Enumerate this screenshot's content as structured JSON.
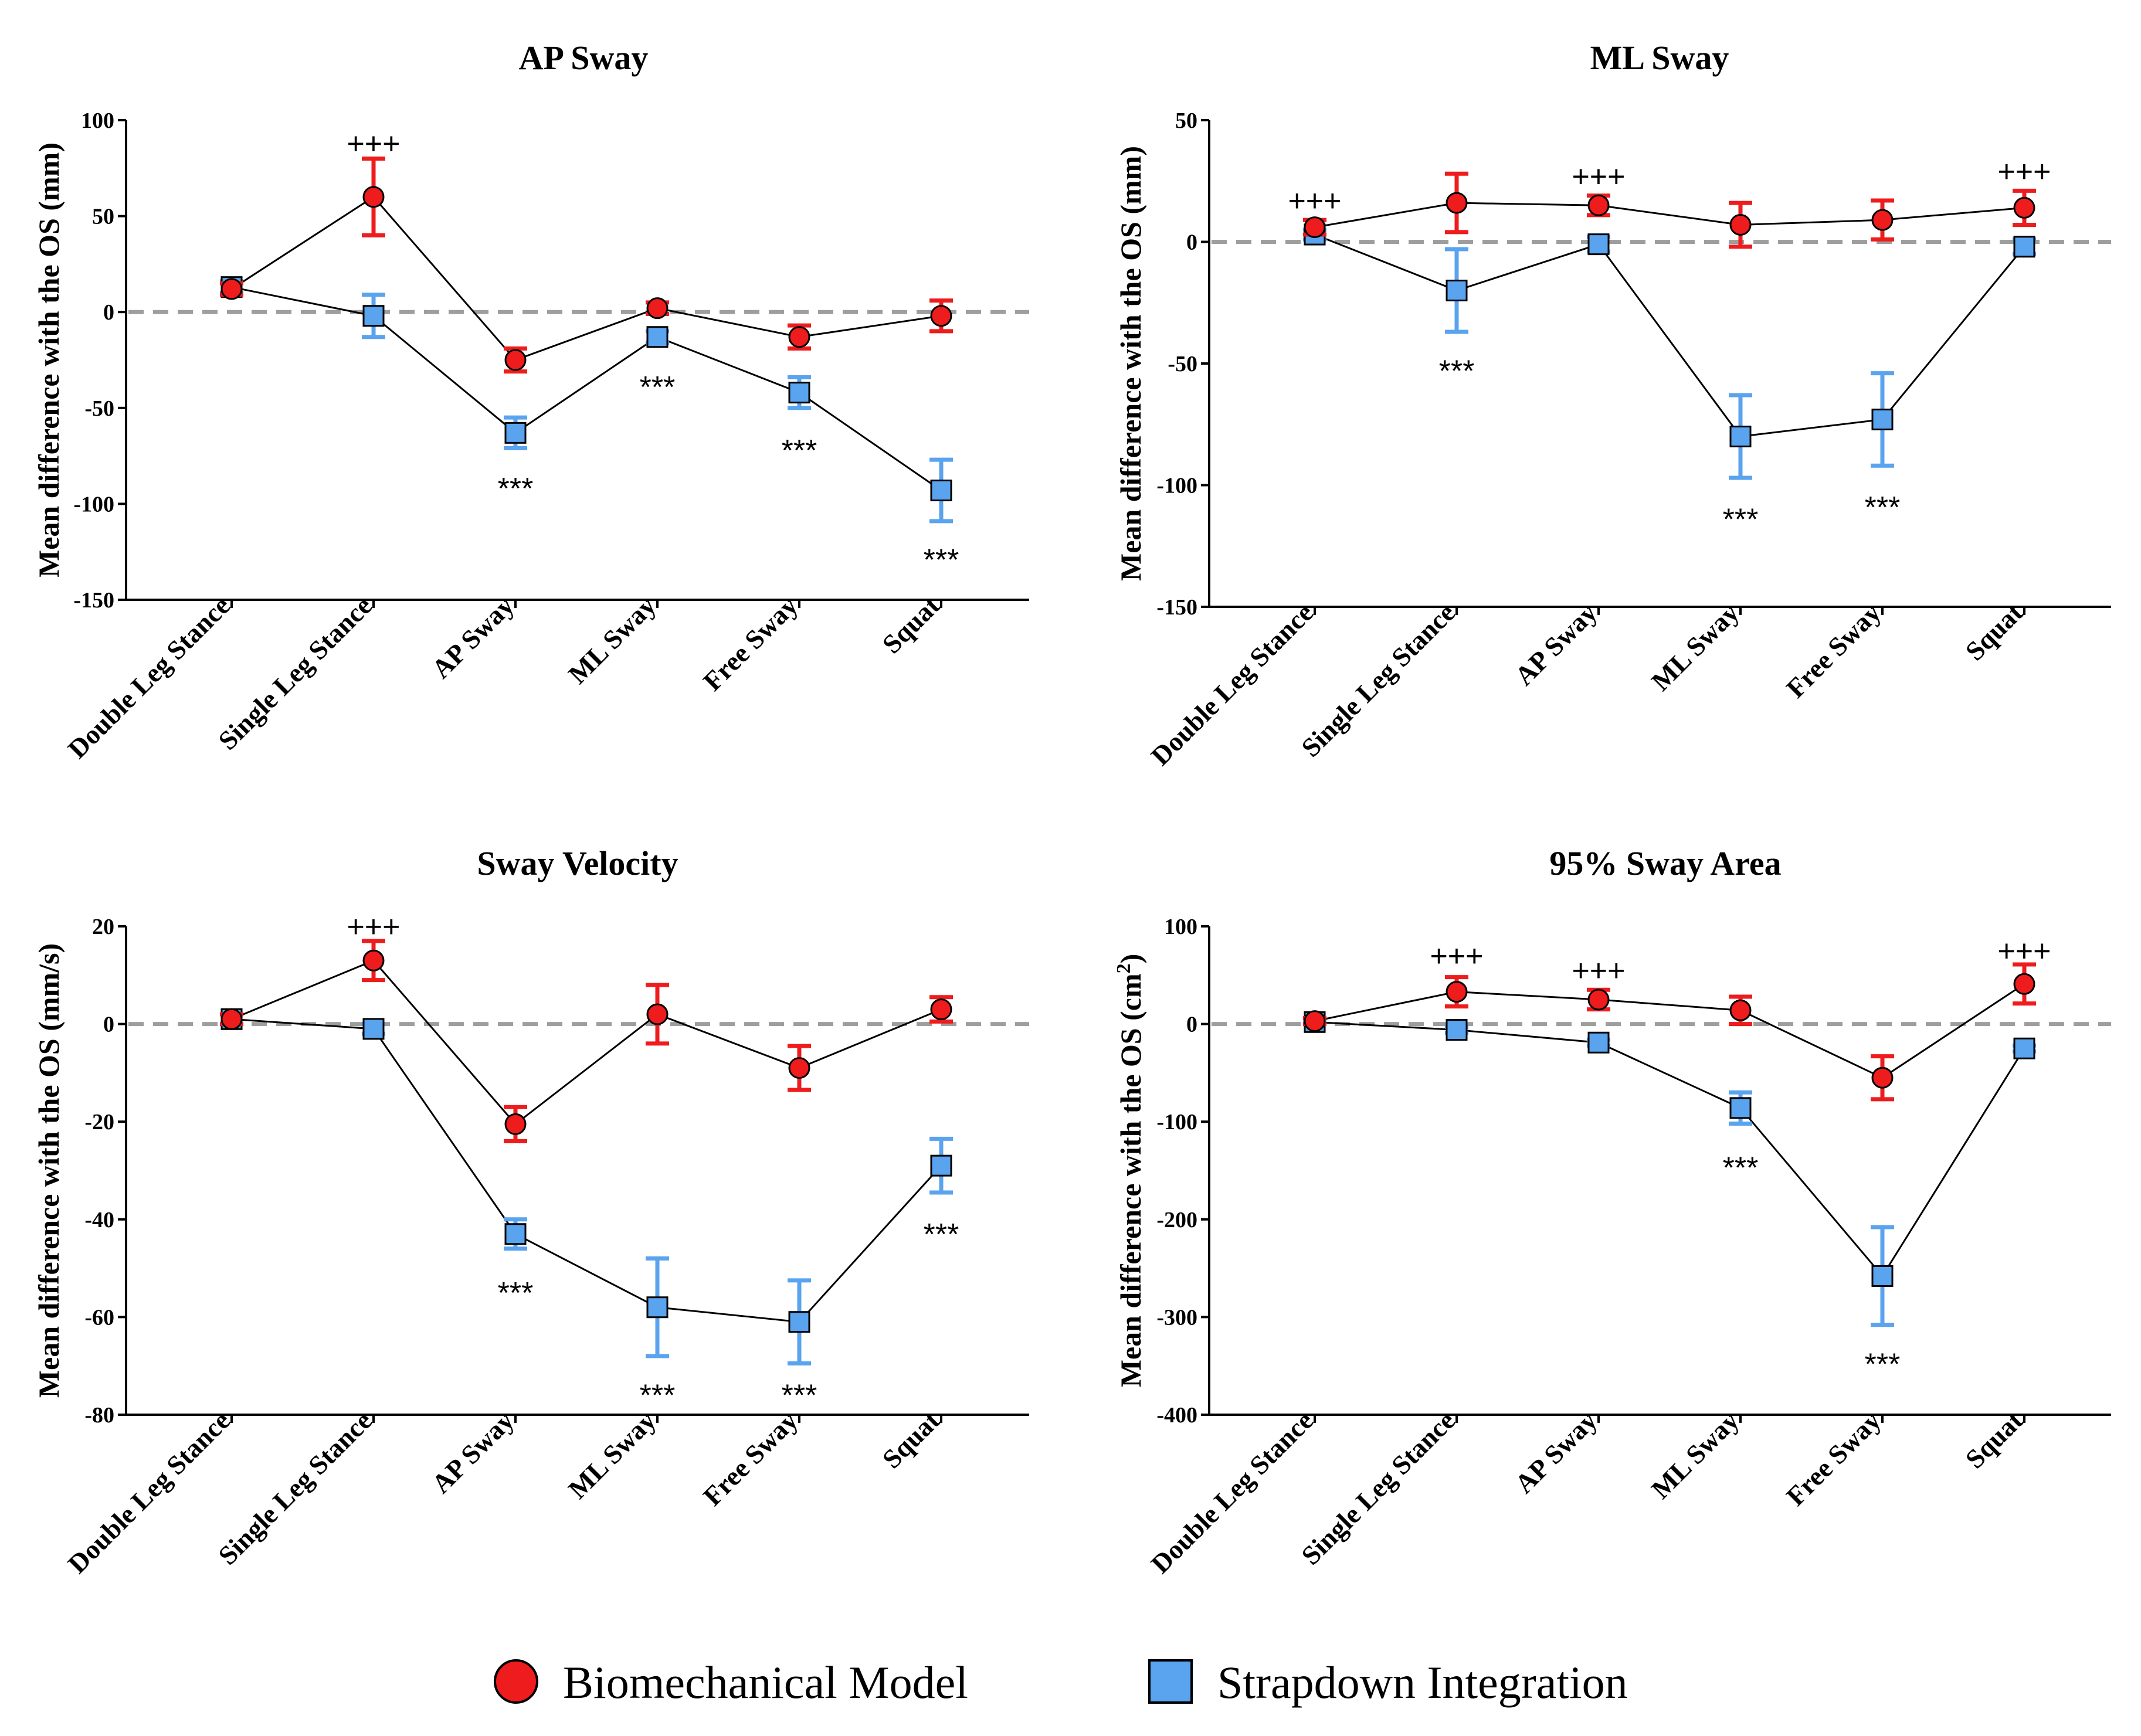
{
  "legend": {
    "series": [
      {
        "name": "Biomechanical Model",
        "color": "#ee1c1c",
        "marker": "circle"
      },
      {
        "name": "Strapdown Integration",
        "color": "#5aa3ee",
        "marker": "square"
      }
    ]
  },
  "chart_data": [
    {
      "type": "line",
      "title": "AP Sway",
      "ylabel": "Mean difference with the OS (mm)",
      "xlabel": "",
      "ylim": [
        -150,
        100
      ],
      "yticks": [
        100,
        50,
        0,
        -50,
        -100,
        -150
      ],
      "ytick_labels": [
        "100",
        "50",
        "0",
        "-50",
        "-100",
        "-150"
      ],
      "categories": [
        "Double Leg Stance",
        "Single Leg Stance",
        "AP Sway",
        "ML Sway",
        "Free Sway",
        "Squat"
      ],
      "series": [
        {
          "name": "Biomechanical Model",
          "values": [
            12,
            60,
            -25,
            2,
            -13,
            -2
          ],
          "err": [
            3,
            20,
            6,
            3,
            6,
            8
          ]
        },
        {
          "name": "Strapdown Integration",
          "values": [
            13,
            -2,
            -63,
            -13,
            -42,
            -93
          ],
          "err": [
            3,
            11,
            8,
            3,
            8,
            16
          ]
        }
      ],
      "annotations": [
        {
          "text": "+++",
          "category": "Single Leg Stance",
          "y": 88
        },
        {
          "text": "***",
          "category": "AP Sway",
          "y": -92
        },
        {
          "text": "***",
          "category": "ML Sway",
          "y": -39
        },
        {
          "text": "***",
          "category": "Free Sway",
          "y": -72
        },
        {
          "text": "***",
          "category": "Squat",
          "y": -129
        }
      ]
    },
    {
      "type": "line",
      "title": "ML Sway",
      "ylabel": "Mean difference with the OS (mm)",
      "xlabel": "",
      "ylim": [
        -150,
        50
      ],
      "yticks": [
        50,
        0,
        -50,
        -100,
        -150
      ],
      "ytick_labels": [
        "50",
        "0",
        "-50",
        "-100",
        "-150"
      ],
      "categories": [
        "Double Leg Stance",
        "Single Leg Stance",
        "AP Sway",
        "ML Sway",
        "Free Sway",
        "Squat"
      ],
      "series": [
        {
          "name": "Biomechanical Model",
          "values": [
            6,
            16,
            15,
            7,
            9,
            14
          ],
          "err": [
            3,
            12,
            4,
            9,
            8,
            7
          ]
        },
        {
          "name": "Strapdown Integration",
          "values": [
            3,
            -20,
            -1,
            -80,
            -73,
            -2
          ],
          "err": [
            2,
            17,
            3,
            17,
            19,
            3
          ]
        }
      ],
      "annotations": [
        {
          "text": "+++",
          "category": "Double Leg Stance",
          "y": 17
        },
        {
          "text": "***",
          "category": "Single Leg Stance",
          "y": -53
        },
        {
          "text": "+++",
          "category": "AP Sway",
          "y": 27
        },
        {
          "text": "***",
          "category": "ML Sway",
          "y": -114
        },
        {
          "text": "***",
          "category": "Free Sway",
          "y": -109
        },
        {
          "text": "+++",
          "category": "Squat",
          "y": 29
        }
      ]
    },
    {
      "type": "line",
      "title": "Sway Velocity",
      "ylabel": "Mean difference with the OS (mm/s)",
      "xlabel": "",
      "ylim": [
        -80,
        20
      ],
      "yticks": [
        20,
        0,
        -20,
        -40,
        -60,
        -80
      ],
      "ytick_labels": [
        "20",
        "0",
        "-20",
        "-40",
        "-60",
        "-80"
      ],
      "categories": [
        "Double Leg Stance",
        "Single Leg Stance",
        "AP Sway",
        "ML Sway",
        "Free Sway",
        "Squat"
      ],
      "series": [
        {
          "name": "Biomechanical Model",
          "values": [
            1,
            13,
            -20.5,
            2,
            -9,
            3
          ],
          "err": [
            1,
            4,
            3.5,
            6,
            4.5,
            2.5
          ]
        },
        {
          "name": "Strapdown Integration",
          "values": [
            1,
            -1,
            -43,
            -58,
            -61,
            -29
          ],
          "err": [
            1,
            1,
            3,
            10,
            8.5,
            5.5
          ]
        }
      ],
      "annotations": [
        {
          "text": "+++",
          "category": "Single Leg Stance",
          "y": 20
        },
        {
          "text": "***",
          "category": "AP Sway",
          "y": -55
        },
        {
          "text": "***",
          "category": "ML Sway",
          "y": -76
        },
        {
          "text": "***",
          "category": "Free Sway",
          "y": -76
        },
        {
          "text": "***",
          "category": "Squat",
          "y": -43
        }
      ]
    },
    {
      "type": "line",
      "title": "95% Sway Area",
      "ylabel": "Mean difference with the OS (cm",
      "ylabel_sup": "2",
      "ylabel_end": ")",
      "xlabel": "",
      "ylim": [
        -400,
        100
      ],
      "yticks": [
        100,
        0,
        -100,
        -200,
        -300,
        -400
      ],
      "ytick_labels": [
        "100",
        "0",
        "-100",
        "-200",
        "-300",
        "-400"
      ],
      "categories": [
        "Double Leg Stance",
        "Single Leg Stance",
        "AP Sway",
        "ML Sway",
        "Free Sway",
        "Squat"
      ],
      "series": [
        {
          "name": "Biomechanical Model",
          "values": [
            3,
            33,
            25,
            14,
            -55,
            41
          ],
          "err": [
            3,
            15,
            10,
            14,
            22,
            20
          ]
        },
        {
          "name": "Strapdown Integration",
          "values": [
            2,
            -6,
            -19,
            -86,
            -258,
            -25
          ],
          "err": [
            2,
            3,
            3,
            16,
            50,
            3
          ]
        }
      ],
      "annotations": [
        {
          "text": "+++",
          "category": "Single Leg Stance",
          "y": 70
        },
        {
          "text": "+++",
          "category": "AP Sway",
          "y": 55
        },
        {
          "text": "***",
          "category": "ML Sway",
          "y": -147
        },
        {
          "text": "***",
          "category": "Free Sway",
          "y": -348
        },
        {
          "text": "+++",
          "category": "Squat",
          "y": 75
        }
      ]
    }
  ]
}
